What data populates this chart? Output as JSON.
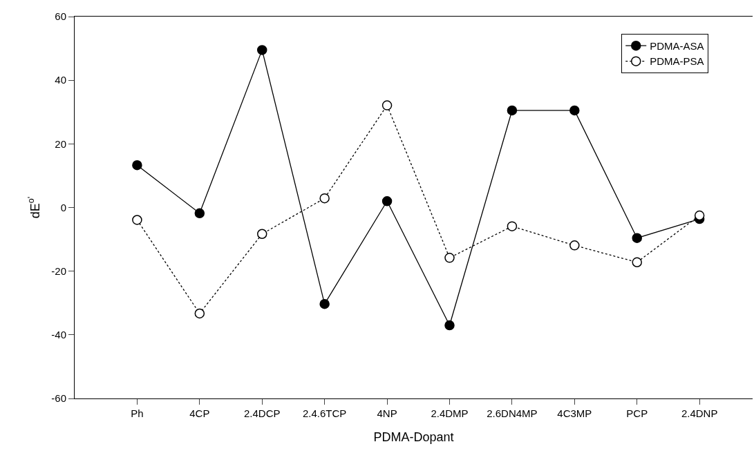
{
  "chart_data": {
    "type": "line",
    "xlabel": "PDMA-Dopant",
    "ylabel": "dE$^{o'}$",
    "categories": [
      "Ph",
      "4CP",
      "2.4DCP",
      "2.4.6TCP",
      "4NP",
      "2.4DMP",
      "2.6DN4MP",
      "4C3MP",
      "PCP",
      "2.4DNP"
    ],
    "series": [
      {
        "name": "PDMA-ASA",
        "color": "#000000",
        "marker": "circle",
        "line_style": "solid",
        "values": [
          13.3,
          -1.8,
          49.5,
          -30.3,
          2.0,
          -37.0,
          30.5,
          30.5,
          -9.6,
          -3.6
        ]
      },
      {
        "name": "PDMA-PSA",
        "color": "#000000",
        "marker": "circle-open",
        "line_style": "dotted",
        "values": [
          -3.9,
          -33.3,
          -8.3,
          2.9,
          32.1,
          -15.8,
          -5.9,
          -11.9,
          -17.2,
          -2.5
        ]
      }
    ],
    "ylim": [
      -60,
      60
    ],
    "yticks": [
      -60,
      -40,
      -20,
      0,
      20,
      40,
      60
    ],
    "legend": "top right"
  }
}
